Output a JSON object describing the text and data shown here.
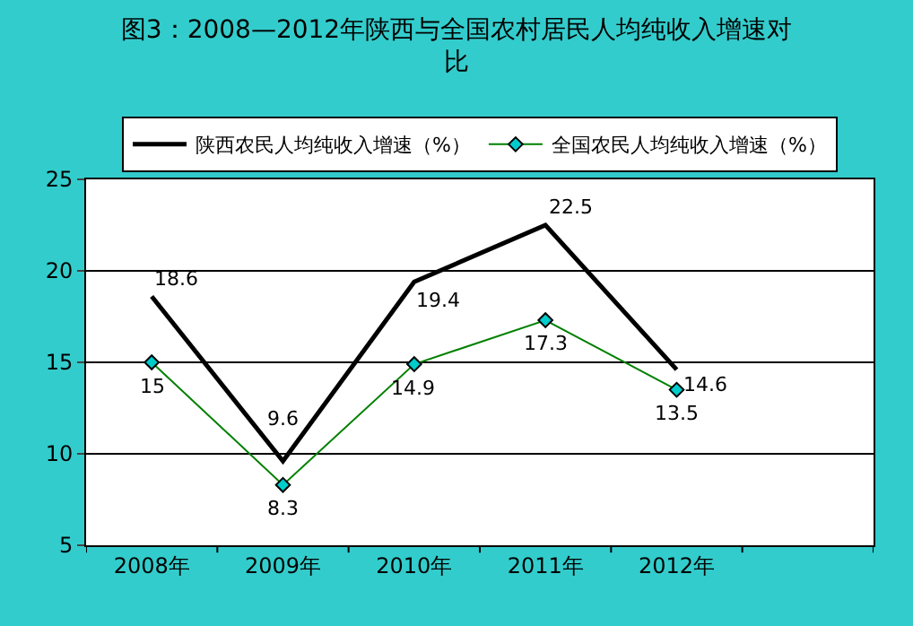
{
  "chart_data": {
    "type": "line",
    "title": "图3：2008—2012年陕西与全国农村居民人均纯收入增速对比",
    "categories": [
      "2008年",
      "2009年",
      "2010年",
      "2011年",
      "2012年",
      null
    ],
    "series": [
      {
        "name": "陕西农民人均纯收入增速（%）",
        "color": "#000000",
        "values": [
          18.6,
          9.6,
          19.4,
          22.5,
          14.6,
          null
        ],
        "marker": "none"
      },
      {
        "name": "全国农民人均纯收入增速（%）",
        "color": "#008000",
        "values": [
          15,
          8.3,
          14.9,
          17.3,
          13.5,
          null
        ],
        "marker": "diamond"
      }
    ],
    "ylim": [
      5,
      25
    ],
    "yticks": [
      5,
      10,
      15,
      20,
      25
    ],
    "grid": "y",
    "legend": "top",
    "data_labels": true,
    "line_style": "solid"
  }
}
